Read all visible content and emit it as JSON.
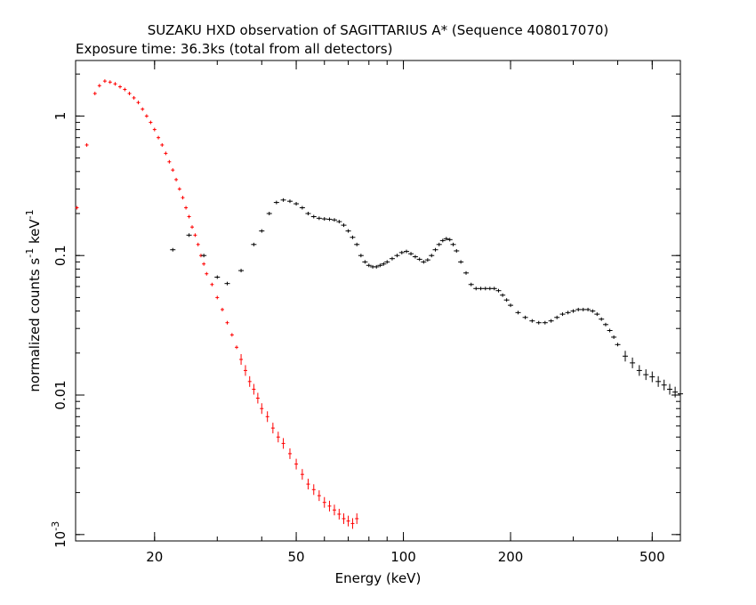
{
  "chart_data": {
    "type": "scatter",
    "title": "SUZAKU HXD observation of SAGITTARIUS A* (Sequence 408017070)",
    "subtitle": "Exposure time: 36.3ks (total from all detectors)",
    "xlabel": "Energy (keV)",
    "ylabel": "normalized counts s^-1 keV^-1",
    "x_scale": "log",
    "y_scale": "log",
    "xlim": [
      12,
      600
    ],
    "ylim": [
      0.0009,
      2.5
    ],
    "x_ticks": [
      {
        "value": 20,
        "label": "20"
      },
      {
        "value": 50,
        "label": "50"
      },
      {
        "value": 100,
        "label": "100"
      },
      {
        "value": 200,
        "label": "200"
      },
      {
        "value": 500,
        "label": "500"
      }
    ],
    "y_ticks": [
      {
        "value": 1,
        "label": "1"
      },
      {
        "value": 0.1,
        "label": "0.1"
      },
      {
        "value": 0.01,
        "label": "0.01"
      },
      {
        "value": 0.001,
        "label": "10^-3"
      }
    ],
    "grid": false,
    "series": [
      {
        "color": "#ff0000",
        "points": [
          [
            12.1,
            0.22
          ],
          [
            12.9,
            0.62
          ],
          [
            13.6,
            1.45
          ],
          [
            14.0,
            1.65
          ],
          [
            14.5,
            1.78
          ],
          [
            15.0,
            1.75
          ],
          [
            15.5,
            1.7
          ],
          [
            16.0,
            1.62
          ],
          [
            16.5,
            1.55
          ],
          [
            17.0,
            1.45
          ],
          [
            17.5,
            1.35
          ],
          [
            18.0,
            1.25
          ],
          [
            18.5,
            1.12
          ],
          [
            19.0,
            1.0
          ],
          [
            19.5,
            0.9
          ],
          [
            20.0,
            0.8
          ],
          [
            20.5,
            0.7
          ],
          [
            21.0,
            0.62
          ],
          [
            21.5,
            0.54
          ],
          [
            22.0,
            0.47
          ],
          [
            22.5,
            0.41
          ],
          [
            23.0,
            0.35
          ],
          [
            23.5,
            0.3
          ],
          [
            24.0,
            0.26
          ],
          [
            24.5,
            0.22
          ],
          [
            25.0,
            0.19
          ],
          [
            25.5,
            0.16
          ],
          [
            26.0,
            0.14
          ],
          [
            26.5,
            0.12
          ],
          [
            27.0,
            0.1
          ],
          [
            27.5,
            0.087
          ],
          [
            28.0,
            0.074
          ],
          [
            29.0,
            0.062
          ],
          [
            30.0,
            0.05
          ],
          [
            31.0,
            0.041
          ],
          [
            32.0,
            0.033
          ],
          [
            33.0,
            0.027
          ],
          [
            34.0,
            0.022
          ],
          [
            35.0,
            0.018
          ],
          [
            36.0,
            0.015
          ],
          [
            37.0,
            0.0125
          ],
          [
            38.0,
            0.011
          ],
          [
            39.0,
            0.0095
          ],
          [
            40.0,
            0.008
          ],
          [
            41.5,
            0.007
          ],
          [
            43.0,
            0.0058
          ],
          [
            44.5,
            0.005
          ],
          [
            46.0,
            0.0045
          ],
          [
            48.0,
            0.0038
          ],
          [
            50.0,
            0.0032
          ],
          [
            52.0,
            0.0027
          ],
          [
            54.0,
            0.0023
          ],
          [
            56.0,
            0.0021
          ],
          [
            58.0,
            0.0019
          ],
          [
            60.0,
            0.0017
          ],
          [
            62.0,
            0.0016
          ],
          [
            64.0,
            0.0015
          ],
          [
            66.0,
            0.0014
          ],
          [
            68.0,
            0.0013
          ],
          [
            70.0,
            0.00125
          ],
          [
            72.0,
            0.0012
          ],
          [
            74.0,
            0.0013
          ]
        ]
      },
      {
        "color": "#000000",
        "points": [
          [
            22.5,
            0.11
          ],
          [
            25.0,
            0.14
          ],
          [
            27.5,
            0.1
          ],
          [
            30.0,
            0.07
          ],
          [
            32.0,
            0.063
          ],
          [
            35.0,
            0.078
          ],
          [
            38.0,
            0.12
          ],
          [
            40.0,
            0.15
          ],
          [
            42.0,
            0.2
          ],
          [
            44.0,
            0.24
          ],
          [
            46.0,
            0.25
          ],
          [
            48.0,
            0.245
          ],
          [
            50.0,
            0.235
          ],
          [
            52.0,
            0.22
          ],
          [
            54.0,
            0.2
          ],
          [
            56.0,
            0.19
          ],
          [
            58.0,
            0.185
          ],
          [
            60.0,
            0.183
          ],
          [
            62.0,
            0.182
          ],
          [
            64.0,
            0.18
          ],
          [
            66.0,
            0.175
          ],
          [
            68.0,
            0.165
          ],
          [
            70.0,
            0.15
          ],
          [
            72.0,
            0.135
          ],
          [
            74.0,
            0.12
          ],
          [
            76.0,
            0.1
          ],
          [
            78.0,
            0.09
          ],
          [
            80.0,
            0.085
          ],
          [
            82.0,
            0.083
          ],
          [
            84.0,
            0.083
          ],
          [
            86.0,
            0.085
          ],
          [
            88.0,
            0.087
          ],
          [
            90.0,
            0.09
          ],
          [
            93.0,
            0.095
          ],
          [
            96.0,
            0.1
          ],
          [
            99.0,
            0.105
          ],
          [
            102.0,
            0.107
          ],
          [
            105.0,
            0.103
          ],
          [
            108.0,
            0.098
          ],
          [
            111.0,
            0.094
          ],
          [
            114.0,
            0.09
          ],
          [
            117.0,
            0.093
          ],
          [
            120.0,
            0.1
          ],
          [
            123.0,
            0.11
          ],
          [
            126.0,
            0.12
          ],
          [
            129.0,
            0.128
          ],
          [
            132.0,
            0.132
          ],
          [
            135.0,
            0.13
          ],
          [
            138.0,
            0.12
          ],
          [
            141.0,
            0.108
          ],
          [
            145.0,
            0.09
          ],
          [
            150.0,
            0.075
          ],
          [
            155.0,
            0.062
          ],
          [
            160.0,
            0.058
          ],
          [
            165.0,
            0.058
          ],
          [
            170.0,
            0.058
          ],
          [
            175.0,
            0.058
          ],
          [
            180.0,
            0.058
          ],
          [
            185.0,
            0.056
          ],
          [
            190.0,
            0.052
          ],
          [
            195.0,
            0.048
          ],
          [
            200.0,
            0.044
          ],
          [
            210.0,
            0.039
          ],
          [
            220.0,
            0.036
          ],
          [
            230.0,
            0.034
          ],
          [
            240.0,
            0.033
          ],
          [
            250.0,
            0.033
          ],
          [
            260.0,
            0.034
          ],
          [
            270.0,
            0.036
          ],
          [
            280.0,
            0.038
          ],
          [
            290.0,
            0.039
          ],
          [
            300.0,
            0.04
          ],
          [
            310.0,
            0.041
          ],
          [
            320.0,
            0.041
          ],
          [
            330.0,
            0.041
          ],
          [
            340.0,
            0.04
          ],
          [
            350.0,
            0.038
          ],
          [
            360.0,
            0.035
          ],
          [
            370.0,
            0.032
          ],
          [
            380.0,
            0.029
          ],
          [
            390.0,
            0.026
          ],
          [
            400.0,
            0.023
          ],
          [
            420.0,
            0.019
          ],
          [
            440.0,
            0.017
          ],
          [
            460.0,
            0.015
          ],
          [
            480.0,
            0.014
          ],
          [
            500.0,
            0.0135
          ],
          [
            520.0,
            0.0125
          ],
          [
            540.0,
            0.0118
          ],
          [
            560.0,
            0.011
          ],
          [
            580.0,
            0.0105
          ],
          [
            600.0,
            0.0102
          ]
        ]
      }
    ]
  }
}
